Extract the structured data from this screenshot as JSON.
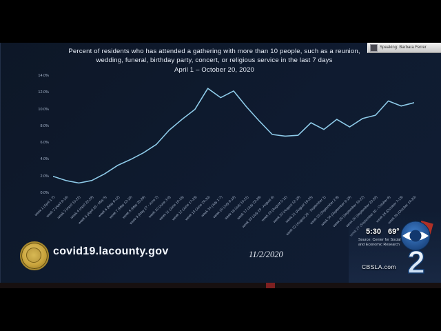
{
  "slide": {
    "title_line1": "Percent of residents who has attended a gathering with more than 10 people, such as a reunion,",
    "title_line2": "wedding, funeral, birthday party, concert, or religious service in the last 7 days",
    "title_line3": "April 1 – October 20, 2020",
    "footer_url": "covid19.lacounty.gov",
    "footer_date": "11/2/2020"
  },
  "chart_data": {
    "type": "line",
    "title": "Percent of residents who has attended a gathering with more than 10 people, such as a reunion, wedding, funeral, birthday party, concert, or religious service in the last 7 days (April 1 – October 20, 2020)",
    "xlabel": "",
    "ylabel": "",
    "ylim": [
      0,
      14
    ],
    "grid": false,
    "legend": false,
    "line_color": "#8ecbe9",
    "y_ticks": [
      "0.0%",
      "2.0%",
      "4.0%",
      "6.0%",
      "8.0%",
      "10.0%",
      "12.0%",
      "14.0%"
    ],
    "x": [
      "week 1 (April 1-7)",
      "week 2 (April 8-14)",
      "week 3 (April 15-21)",
      "week 4 (April 22-28)",
      "week 5 (April 29 - May 5)",
      "week 6 (May 6-12)",
      "week 7 (May 13-19)",
      "week 8 (May 20-26)",
      "week 9 (May 27 - June 2)",
      "week 10 (June 3-9)",
      "week 11 (June 10-16)",
      "week 12 (June 17-23)",
      "week 13 (June 24-30)",
      "week 14 (July 1-7)",
      "week 15 (July 8-14)",
      "week 16 (July 15-21)",
      "week 17 (July 22-28)",
      "week 18 (July 29 - August 4)",
      "week 19 (August 5-11)",
      "week 20 (August 12-18)",
      "week 21 (August 19-25)",
      "week 22 (August 26 - September 1)",
      "week 23 (September 2-8)",
      "week 24 (September 9-15)",
      "week 25 (September 16-22)",
      "week 26 (September 23-29)",
      "week 27 (September 30 - October 6)",
      "week 28 (October 7-13)",
      "week 29 (October 14-20)"
    ],
    "values": [
      2.0,
      1.5,
      1.2,
      1.5,
      2.3,
      3.3,
      4.0,
      4.8,
      5.8,
      7.5,
      8.8,
      10.0,
      12.5,
      11.4,
      12.2,
      10.3,
      8.6,
      7.0,
      6.8,
      6.9,
      8.4,
      7.6,
      8.8,
      7.9,
      8.9,
      9.3,
      11.0,
      10.4,
      10.8
    ]
  },
  "broadcast": {
    "speaking_label": "Speaking: Barbara Ferrer",
    "time": "5:30",
    "temp": "69°",
    "source_line1": "Source: Center for Social",
    "source_line2": "and Economic Research",
    "station_url": "CBSLA.com",
    "logo_number": "2"
  }
}
